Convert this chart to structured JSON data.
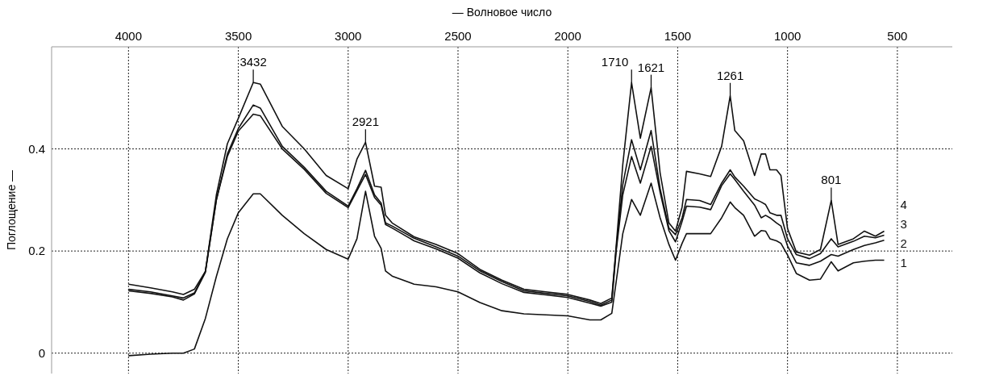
{
  "chart_data": {
    "type": "line",
    "xlabel": "— Волновое число",
    "ylabel": "Поглощение —",
    "x": [
      4000,
      3900,
      3800,
      3750,
      3700,
      3650,
      3600,
      3550,
      3500,
      3432,
      3400,
      3300,
      3200,
      3100,
      3000,
      2960,
      2921,
      2880,
      2850,
      2830,
      2800,
      2700,
      2600,
      2500,
      2400,
      2300,
      2200,
      2100,
      2000,
      1900,
      1850,
      1800,
      1780,
      1750,
      1710,
      1670,
      1621,
      1580,
      1540,
      1510,
      1480,
      1460,
      1400,
      1350,
      1300,
      1261,
      1240,
      1200,
      1150,
      1120,
      1100,
      1080,
      1050,
      1030,
      1000,
      960,
      900,
      850,
      801,
      770,
      700,
      650,
      600,
      560
    ],
    "series": [
      {
        "name": "1",
        "color": "#111111",
        "values": [
          -0.005,
          -0.002,
          0,
          0,
          0.008,
          0.068,
          0.15,
          0.224,
          0.275,
          0.312,
          0.312,
          0.27,
          0.234,
          0.203,
          0.184,
          0.224,
          0.317,
          0.229,
          0.205,
          0.161,
          0.151,
          0.135,
          0.13,
          0.12,
          0.099,
          0.083,
          0.077,
          0.075,
          0.073,
          0.065,
          0.065,
          0.078,
          0.14,
          0.234,
          0.301,
          0.27,
          0.333,
          0.265,
          0.213,
          0.182,
          0.215,
          0.234,
          0.234,
          0.234,
          0.265,
          0.296,
          0.285,
          0.27,
          0.229,
          0.24,
          0.239,
          0.224,
          0.22,
          0.215,
          0.192,
          0.156,
          0.143,
          0.145,
          0.179,
          0.161,
          0.177,
          0.18,
          0.182,
          0.182
        ]
      },
      {
        "name": "2",
        "color": "#111111",
        "values": [
          0.122,
          0.117,
          0.11,
          0.104,
          0.116,
          0.158,
          0.3,
          0.385,
          0.435,
          0.468,
          0.465,
          0.4,
          0.36,
          0.313,
          0.285,
          0.318,
          0.35,
          0.305,
          0.29,
          0.252,
          0.245,
          0.22,
          0.204,
          0.186,
          0.157,
          0.136,
          0.119,
          0.114,
          0.109,
          0.098,
          0.092,
          0.1,
          0.2,
          0.31,
          0.385,
          0.333,
          0.405,
          0.315,
          0.24,
          0.218,
          0.258,
          0.288,
          0.286,
          0.281,
          0.328,
          0.351,
          0.34,
          0.317,
          0.29,
          0.265,
          0.27,
          0.265,
          0.255,
          0.249,
          0.21,
          0.177,
          0.172,
          0.18,
          0.193,
          0.19,
          0.203,
          0.211,
          0.216,
          0.221
        ]
      },
      {
        "name": "3",
        "color": "#111111",
        "values": [
          0.125,
          0.12,
          0.112,
          0.108,
          0.118,
          0.16,
          0.3,
          0.39,
          0.44,
          0.486,
          0.48,
          0.405,
          0.364,
          0.317,
          0.288,
          0.322,
          0.358,
          0.31,
          0.294,
          0.255,
          0.249,
          0.225,
          0.208,
          0.19,
          0.161,
          0.14,
          0.122,
          0.117,
          0.112,
          0.101,
          0.094,
          0.104,
          0.205,
          0.33,
          0.418,
          0.359,
          0.436,
          0.322,
          0.245,
          0.232,
          0.265,
          0.301,
          0.299,
          0.291,
          0.333,
          0.359,
          0.345,
          0.327,
          0.302,
          0.296,
          0.291,
          0.275,
          0.27,
          0.27,
          0.224,
          0.193,
          0.185,
          0.195,
          0.224,
          0.208,
          0.219,
          0.229,
          0.226,
          0.231
        ]
      },
      {
        "name": "4",
        "color": "#111111",
        "values": [
          0.135,
          0.128,
          0.12,
          0.115,
          0.125,
          0.16,
          0.31,
          0.41,
          0.46,
          0.53,
          0.527,
          0.444,
          0.4,
          0.348,
          0.322,
          0.38,
          0.413,
          0.327,
          0.325,
          0.27,
          0.255,
          0.228,
          0.213,
          0.195,
          0.164,
          0.143,
          0.125,
          0.12,
          0.115,
          0.104,
          0.097,
          0.108,
          0.21,
          0.369,
          0.53,
          0.421,
          0.52,
          0.353,
          0.255,
          0.239,
          0.286,
          0.356,
          0.351,
          0.346,
          0.405,
          0.504,
          0.436,
          0.416,
          0.348,
          0.39,
          0.39,
          0.359,
          0.359,
          0.348,
          0.244,
          0.198,
          0.192,
          0.203,
          0.299,
          0.213,
          0.224,
          0.239,
          0.229,
          0.239
        ]
      }
    ],
    "annotations": [
      {
        "text": "3432",
        "x": 3432,
        "y": 0.53
      },
      {
        "text": "2921",
        "x": 2921,
        "y": 0.413
      },
      {
        "text": "1710",
        "x": 1710,
        "y": 0.53
      },
      {
        "text": "1621",
        "x": 1621,
        "y": 0.52
      },
      {
        "text": "1261",
        "x": 1261,
        "y": 0.504
      },
      {
        "text": "801",
        "x": 801,
        "y": 0.299
      }
    ],
    "xlim": [
      4350,
      250
    ],
    "xticks": [
      4000,
      3500,
      3000,
      2500,
      2000,
      1500,
      1000,
      500
    ],
    "ylim": [
      -0.04,
      0.6
    ],
    "yticks": [
      0,
      0.2,
      0.4
    ],
    "grid": true,
    "marker": "none",
    "line_style": "solid"
  }
}
